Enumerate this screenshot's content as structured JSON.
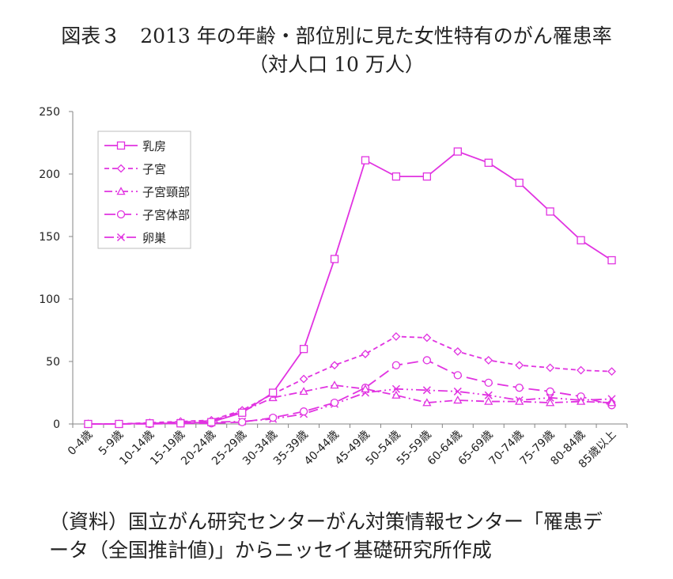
{
  "header": {
    "title_line1": "図表３　2013 年の年齢・部位別に見た女性特有のがん罹患率",
    "title_line2": "（対人口 10 万人）"
  },
  "source": {
    "line1": "（資料）国立がん研究センターがん対策情報センター「罹患デ",
    "line2": "ータ（全国推計値)」からニッセイ基礎研究所作成"
  },
  "colors": {
    "series": "#e133e1",
    "axis": "#868686",
    "text": "#222222"
  },
  "chart_data": {
    "type": "line",
    "title": "2013 年の年齢・部位別に見た女性特有のがん罹患率（対人口 10 万人）",
    "xlabel": "",
    "ylabel": "",
    "ylim": [
      0,
      250
    ],
    "yticks": [
      0,
      50,
      100,
      150,
      200,
      250
    ],
    "grid": false,
    "legend": "top-left",
    "categories": [
      "0-4歳",
      "5-9歳",
      "10-14歳",
      "15-19歳",
      "20-24歳",
      "25-29歳",
      "30-34歳",
      "35-39歳",
      "40-44歳",
      "45-49歳",
      "50-54歳",
      "55-59歳",
      "60-64歳",
      "65-69歳",
      "70-74歳",
      "75-79歳",
      "80-84歳",
      "85歳以上"
    ],
    "series": [
      {
        "name": "乳房",
        "marker": "square",
        "dash": "solid",
        "values": [
          0,
          0,
          0.5,
          0.5,
          1.5,
          9,
          25,
          60,
          132,
          211,
          198,
          198,
          218,
          209,
          193,
          170,
          147,
          131
        ]
      },
      {
        "name": "子宮",
        "marker": "diamond",
        "dash": "dash",
        "values": [
          0,
          0,
          1,
          2,
          3,
          11,
          24,
          36,
          47,
          56,
          70,
          69,
          58,
          51,
          47,
          45,
          43,
          42
        ]
      },
      {
        "name": "子宮頸部",
        "marker": "triangle",
        "dash": "dashdot",
        "values": [
          0,
          0,
          0.5,
          1.5,
          2.5,
          10,
          21,
          26,
          31,
          28,
          23,
          17,
          19,
          18,
          18,
          17,
          18,
          17
        ]
      },
      {
        "name": "子宮体部",
        "marker": "circle",
        "dash": "longdash",
        "values": [
          0,
          0,
          0,
          0.5,
          0.5,
          1.5,
          5,
          10,
          17,
          29,
          47,
          51,
          39,
          33,
          29,
          26,
          22,
          15
        ]
      },
      {
        "name": "卵巣",
        "marker": "x",
        "dash": "dashdotdot",
        "values": [
          0,
          0,
          0.5,
          1,
          1.5,
          2,
          4,
          8,
          16,
          25,
          28,
          27,
          26,
          23,
          19,
          21,
          19,
          20
        ]
      }
    ]
  }
}
